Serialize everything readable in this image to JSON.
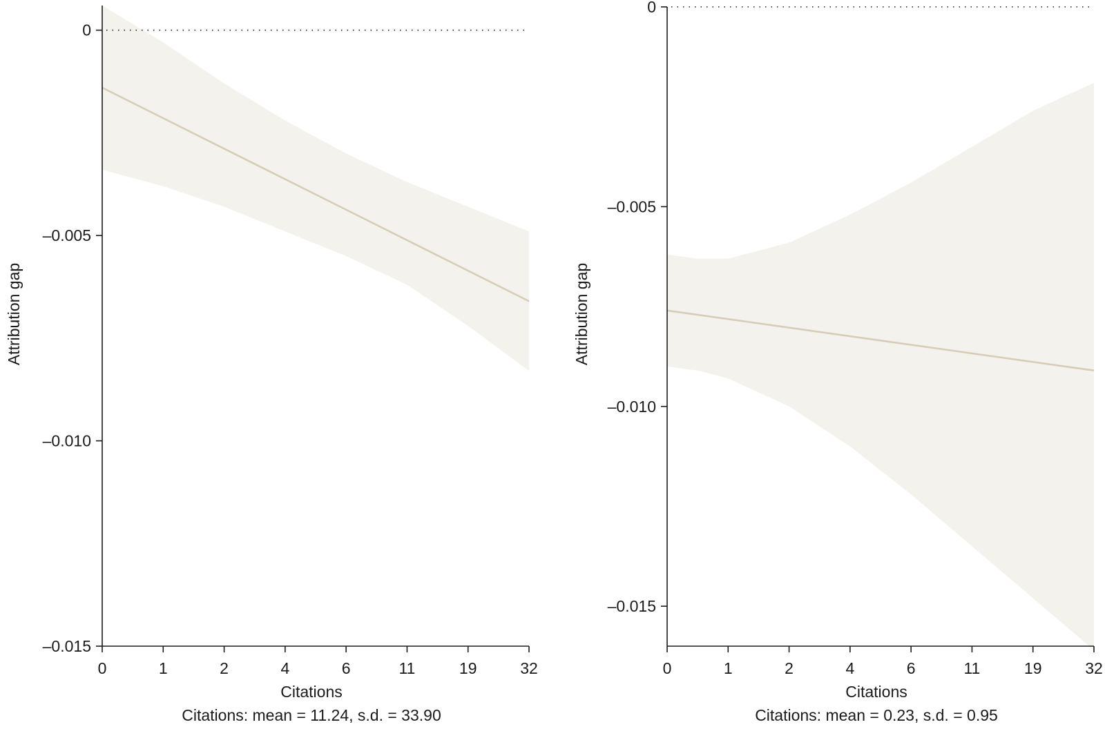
{
  "colors": {
    "band": "#f3f2ec",
    "line": "#d6cdb7",
    "axis": "#1a1a1a",
    "zero_line": "#1a1a1a"
  },
  "chart_data": [
    {
      "type": "line",
      "xlabel": "Citations",
      "ylabel": "Attribution gap",
      "footnote": "Citations: mean = 11.24, s.d. = 33.90",
      "x_tick_labels": [
        "0",
        "1",
        "2",
        "4",
        "6",
        "11",
        "19",
        "32"
      ],
      "xlim": [
        0,
        7
      ],
      "y_ticks": [
        0,
        -0.005,
        -0.01,
        -0.015
      ],
      "y_tick_labels": [
        "0",
        "–0.005",
        "–0.010",
        "–0.015"
      ],
      "ylim": [
        -0.015,
        0.0006
      ],
      "zero_reference_line": true,
      "grid": false,
      "series": [
        {
          "x": [
            0,
            7
          ],
          "y": [
            -0.0014,
            -0.0066
          ]
        }
      ],
      "confidence_band": {
        "x": [
          0,
          1,
          2,
          3,
          4,
          5,
          6,
          7
        ],
        "upper": [
          0.0006,
          -0.0003,
          -0.0013,
          -0.0022,
          -0.003,
          -0.0037,
          -0.0043,
          -0.0049
        ],
        "lower": [
          -0.0034,
          -0.0038,
          -0.0043,
          -0.0049,
          -0.0055,
          -0.0062,
          -0.0072,
          -0.0083
        ]
      }
    },
    {
      "type": "line",
      "xlabel": "Citations",
      "ylabel": "Attribution gap",
      "footnote": "Citations: mean = 0.23, s.d. = 0.95",
      "x_tick_labels": [
        "0",
        "1",
        "2",
        "4",
        "6",
        "11",
        "19",
        "32"
      ],
      "xlim": [
        0,
        7
      ],
      "y_ticks": [
        0,
        -0.005,
        -0.01,
        -0.015
      ],
      "y_tick_labels": [
        "0",
        "–0.005",
        "–0.010",
        "–0.015"
      ],
      "ylim": [
        -0.016,
        0.0
      ],
      "zero_reference_line": true,
      "grid": false,
      "series": [
        {
          "x": [
            0,
            7
          ],
          "y": [
            -0.0076,
            -0.0091
          ]
        }
      ],
      "confidence_band": {
        "x": [
          0,
          0.5,
          1,
          2,
          3,
          4,
          5,
          6,
          7
        ],
        "upper": [
          -0.0062,
          -0.0063,
          -0.0063,
          -0.0059,
          -0.0052,
          -0.0044,
          -0.0035,
          -0.0026,
          -0.0019
        ],
        "lower": [
          -0.009,
          -0.0091,
          -0.0093,
          -0.01,
          -0.011,
          -0.0122,
          -0.0135,
          -0.0148,
          -0.0161
        ]
      }
    }
  ]
}
